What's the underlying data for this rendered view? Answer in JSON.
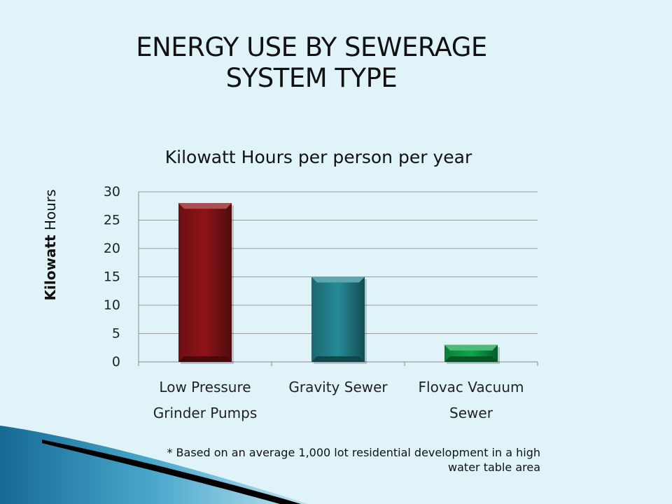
{
  "slide": {
    "title_line1": "ENERGY USE BY SEWERAGE",
    "title_line2": "SYSTEM TYPE",
    "footnote_line1": "* Based on an average 1,000 lot residential development in a high",
    "footnote_line2": "water table area"
  },
  "chart_data": {
    "type": "bar",
    "title": "Kilowatt Hours per person per year",
    "ylabel_bold": "Kilowatt",
    "ylabel_rest": " Hours",
    "categories": [
      [
        "Low Pressure",
        "Grinder Pumps"
      ],
      [
        "Gravity Sewer"
      ],
      [
        "Flovac Vacuum",
        "Sewer"
      ]
    ],
    "values": [
      28,
      15,
      3
    ],
    "bar_colors": [
      "#8e1418",
      "#258a96",
      "#0fa64b"
    ],
    "ylim": [
      0,
      30
    ],
    "yticks": [
      0,
      5,
      10,
      15,
      20,
      25,
      30
    ],
    "grid": true,
    "legend": "none"
  },
  "decoration": {
    "swoosh_colors": [
      "#1b6f9a",
      "#3f9cc2",
      "#000000"
    ]
  }
}
